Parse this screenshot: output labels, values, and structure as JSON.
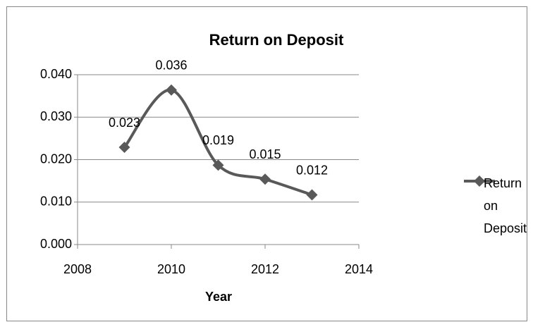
{
  "chart_data": {
    "type": "line",
    "title": "Return on Deposit",
    "xlabel": "Year",
    "x": [
      2009,
      2010,
      2011,
      2012,
      2013
    ],
    "series": [
      {
        "name": "Return on Deposit",
        "color": "#595959",
        "values": [
          0.0229,
          0.0364,
          0.0187,
          0.0154,
          0.0117
        ],
        "value_labels": [
          "0.023",
          "0.036",
          "0.019",
          "0.015",
          "0.012"
        ]
      }
    ],
    "xlim": [
      2008,
      2014
    ],
    "xticks": [
      2008,
      2010,
      2012,
      2014
    ],
    "ylim": [
      0,
      0.04
    ],
    "yticks": [
      {
        "value": 0,
        "label": "0.000"
      },
      {
        "value": 0.01,
        "label": "0.010"
      },
      {
        "value": 0.02,
        "label": "0.020"
      },
      {
        "value": 0.03,
        "label": "0.030"
      },
      {
        "value": 0.04,
        "label": "0.040"
      }
    ],
    "grid": true,
    "smooth": true,
    "legend": "right"
  }
}
